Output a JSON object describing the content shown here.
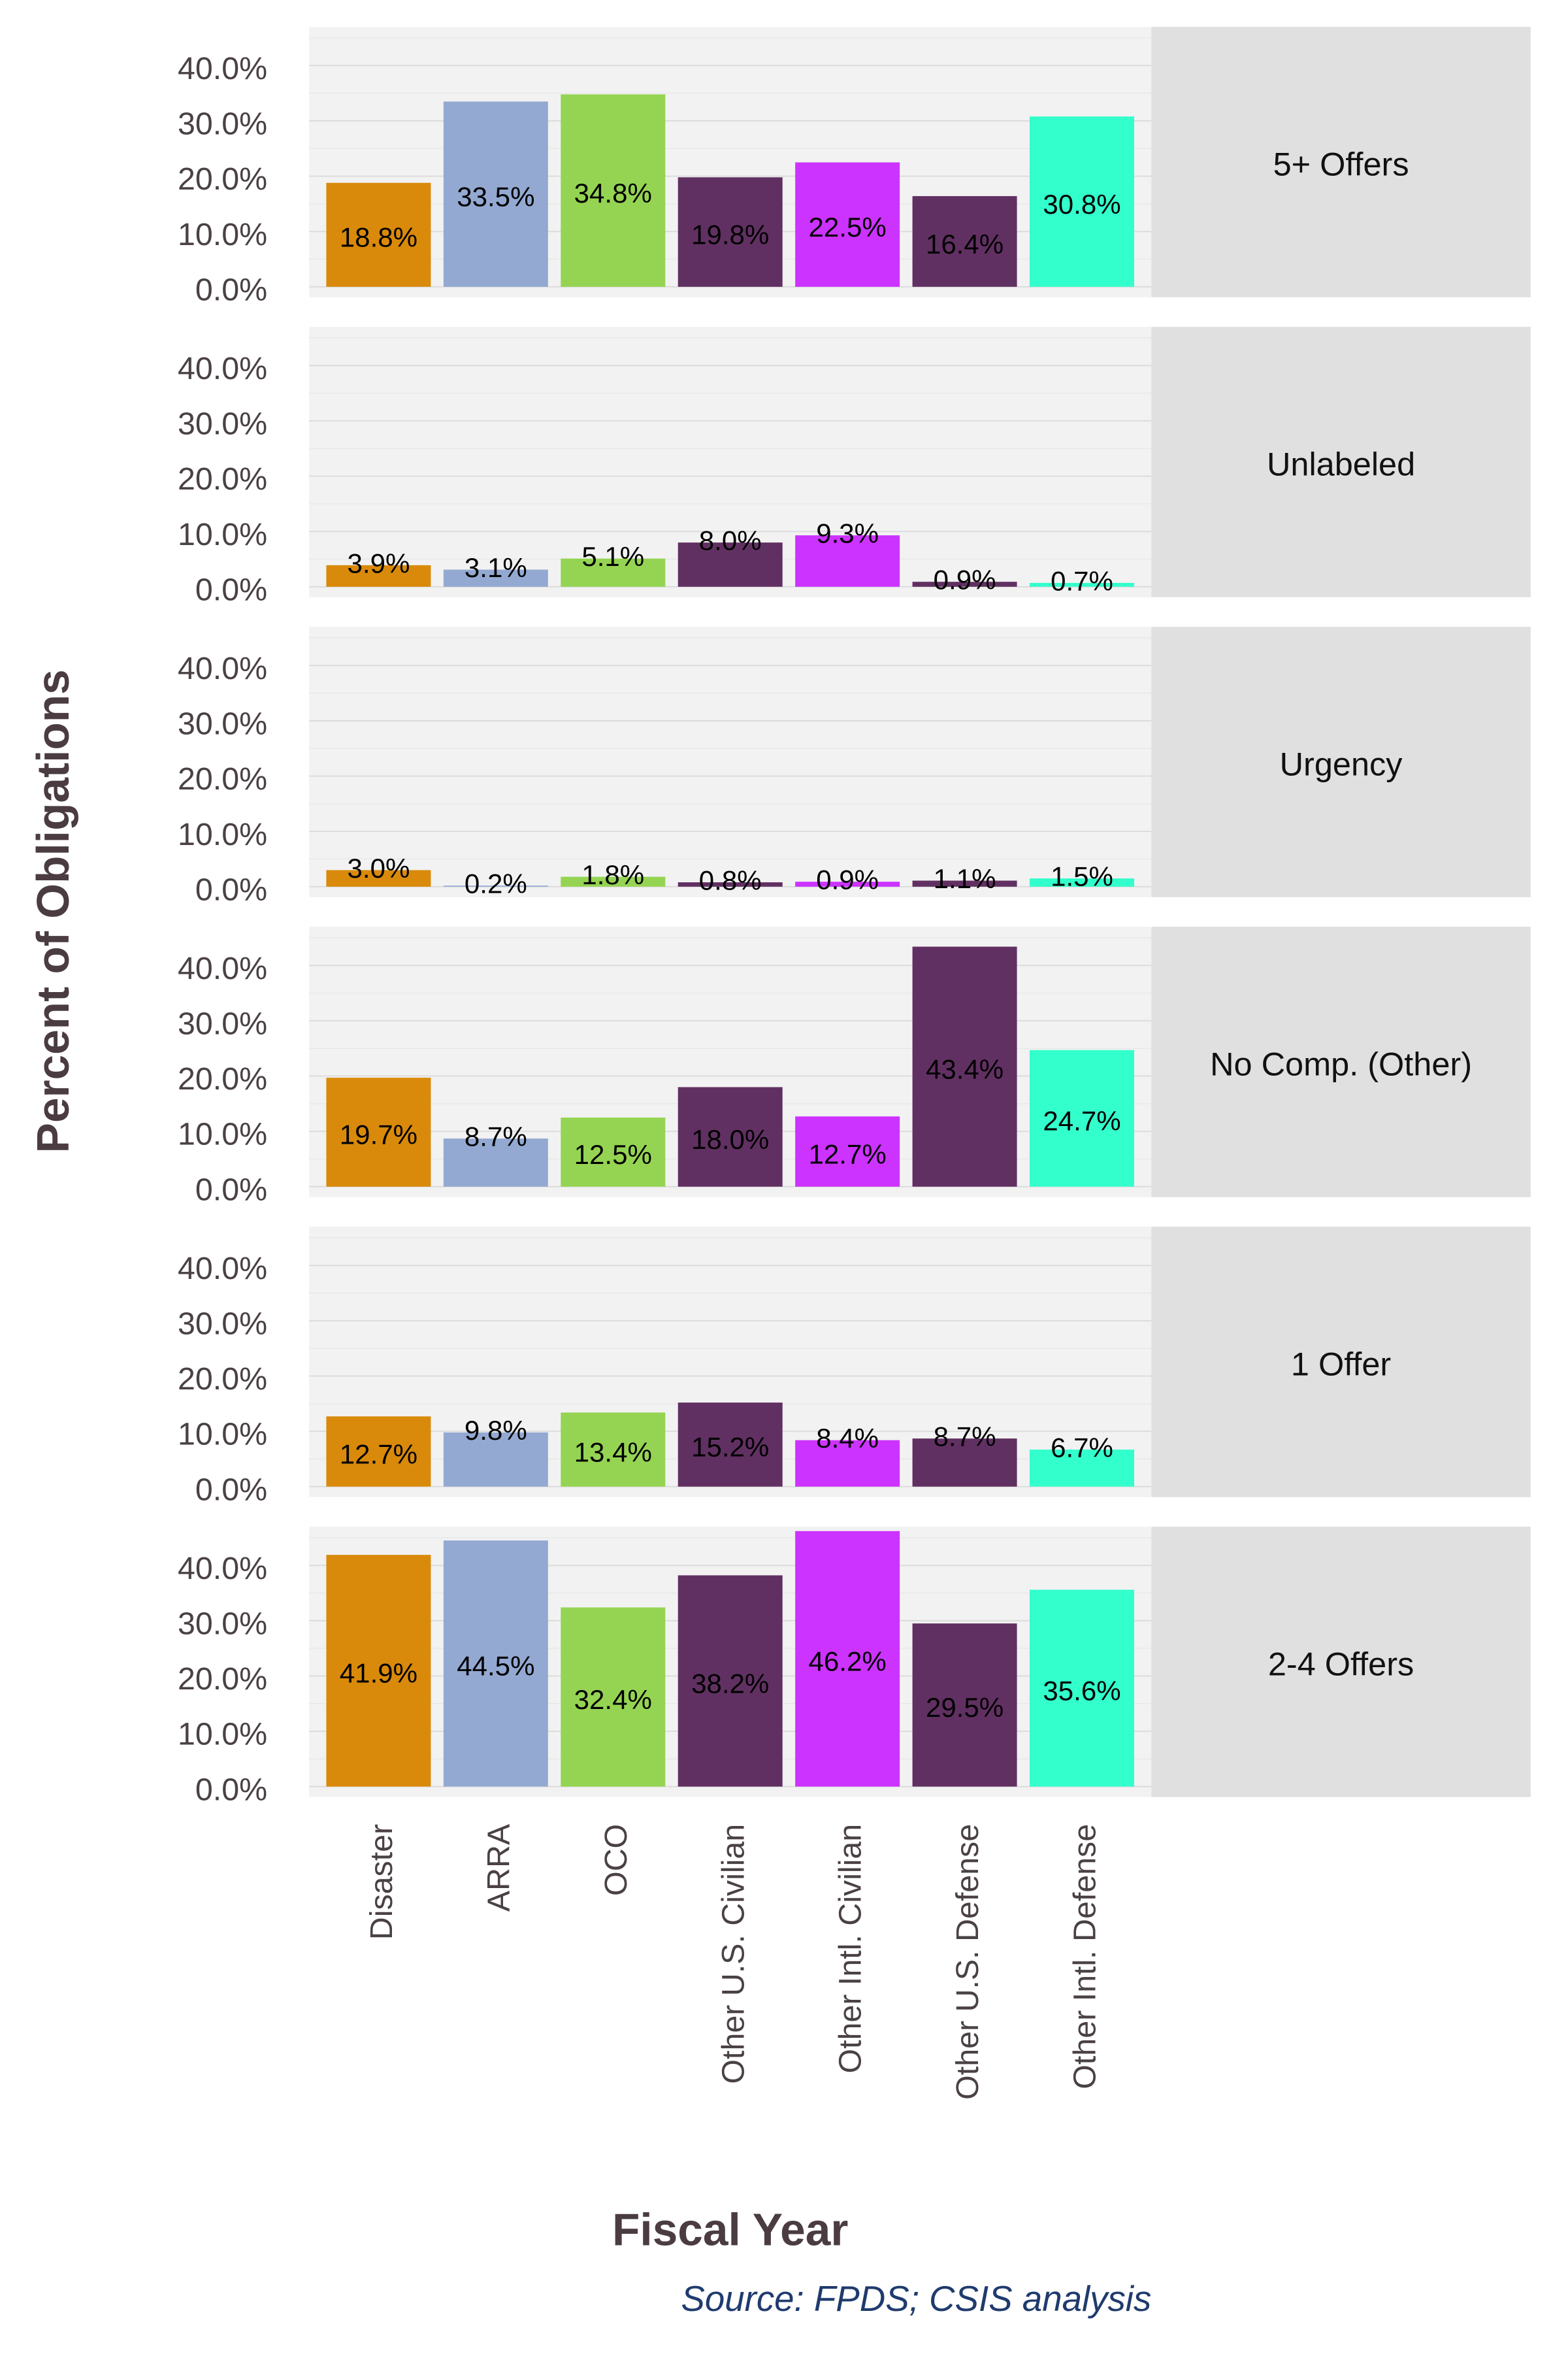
{
  "chart_data": {
    "type": "bar",
    "layout": "faceted-rows",
    "xlabel": "Fiscal Year",
    "ylabel": "Percent of Obligations",
    "source": "Source: FPDS; CSIS analysis",
    "categories": [
      "Disaster",
      "ARRA",
      "OCO",
      "Other U.S. Civilian",
      "Other Intl. Civilian",
      "Other U.S. Defense",
      "Other Intl. Defense"
    ],
    "category_colors": [
      "#D98A0B",
      "#93A9D2",
      "#95D453",
      "#613062",
      "#CC33FF",
      "#613062",
      "#33FFCC"
    ],
    "ylim": [
      0,
      47
    ],
    "yticks": [
      0,
      10,
      20,
      30,
      40
    ],
    "ytick_labels": [
      "0.0%",
      "10.0%",
      "20.0%",
      "30.0%",
      "40.0%"
    ],
    "grid": true,
    "legend": "none",
    "panels": [
      {
        "name": "5+ Offers",
        "values": [
          18.8,
          33.5,
          34.8,
          19.8,
          22.5,
          16.4,
          30.8
        ],
        "labels": [
          "18.8%",
          "33.5%",
          "34.8%",
          "19.8%",
          "22.5%",
          "16.4%",
          "30.8%"
        ]
      },
      {
        "name": "Unlabeled",
        "values": [
          3.9,
          3.1,
          5.1,
          8.0,
          9.3,
          0.9,
          0.7
        ],
        "labels": [
          "3.9%",
          "3.1%",
          "5.1%",
          "8.0%",
          "9.3%",
          "0.9%",
          "0.7%"
        ]
      },
      {
        "name": "Urgency",
        "values": [
          3.0,
          0.2,
          1.8,
          0.8,
          0.9,
          1.1,
          1.5
        ],
        "labels": [
          "3.0%",
          "0.2%",
          "1.8%",
          "0.8%",
          "0.9%",
          "1.1%",
          "1.5%"
        ]
      },
      {
        "name": "No Comp. (Other)",
        "values": [
          19.7,
          8.7,
          12.5,
          18.0,
          12.7,
          43.4,
          24.7
        ],
        "labels": [
          "19.7%",
          "8.7%",
          "12.5%",
          "18.0%",
          "12.7%",
          "43.4%",
          "24.7%"
        ]
      },
      {
        "name": "1 Offer",
        "values": [
          12.7,
          9.8,
          13.4,
          15.2,
          8.4,
          8.7,
          6.7
        ],
        "labels": [
          "12.7%",
          "9.8%",
          "13.4%",
          "15.2%",
          "8.4%",
          "8.7%",
          "6.7%"
        ]
      },
      {
        "name": "2-4 Offers",
        "values": [
          41.9,
          44.5,
          32.4,
          38.2,
          46.2,
          29.5,
          35.6
        ],
        "labels": [
          "41.9%",
          "44.5%",
          "32.4%",
          "38.2%",
          "46.2%",
          "29.5%",
          "35.6%"
        ]
      }
    ]
  }
}
